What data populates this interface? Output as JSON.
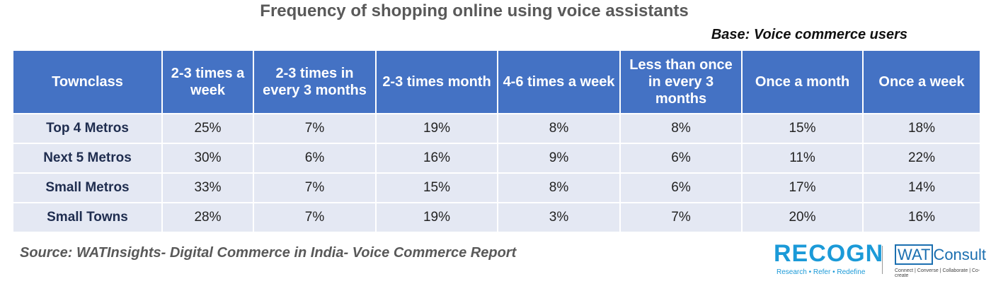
{
  "title": "Frequency of shopping online using voice assistants",
  "base": "Base: Voice commerce users",
  "table": {
    "header": [
      "Townclass",
      "2-3 times a week",
      "2-3 times in every 3 months",
      "2-3 times month",
      "4-6 times a week",
      "Less than once in every 3 months",
      "Once a month",
      "Once a week"
    ],
    "rows": [
      [
        "Top 4 Metros",
        "25%",
        "7%",
        "19%",
        "8%",
        "8%",
        "15%",
        "18%"
      ],
      [
        "Next 5 Metros",
        "30%",
        "6%",
        "16%",
        "9%",
        "6%",
        "11%",
        "22%"
      ],
      [
        "Small Metros",
        "33%",
        "7%",
        "15%",
        "8%",
        "6%",
        "17%",
        "14%"
      ],
      [
        "Small Towns",
        "28%",
        "7%",
        "19%",
        "3%",
        "7%",
        "20%",
        "16%"
      ]
    ]
  },
  "source": "Source: WATInsights- Digital Commerce in India- Voice Commerce Report",
  "logos": {
    "recogn": {
      "name": "RECOGN",
      "tagline": "Research • Refer • Redefine"
    },
    "wat": {
      "name_box": "WAT",
      "name_rest": "Consult",
      "tagline": "Connect | Converse | Collaborate | Co-create"
    }
  }
}
